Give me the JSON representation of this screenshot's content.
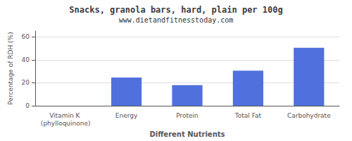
{
  "chart_data": {
    "type": "bar",
    "title": "Snacks, granola bars, hard, plain per 100g",
    "subtitle": "www.dietandfitnesstoday.com",
    "xlabel": "Different Nutrients",
    "ylabel": "Percentage of RDH (%)",
    "categories": [
      "Vitamin K (phylloquinone)",
      "Energy",
      "Protein",
      "Total Fat",
      "Carbohydrate"
    ],
    "values": [
      0,
      24.5,
      18,
      30.5,
      50.5
    ],
    "ylim": [
      0,
      65
    ],
    "yticks": [
      0,
      20,
      40,
      60
    ],
    "grid": true
  }
}
